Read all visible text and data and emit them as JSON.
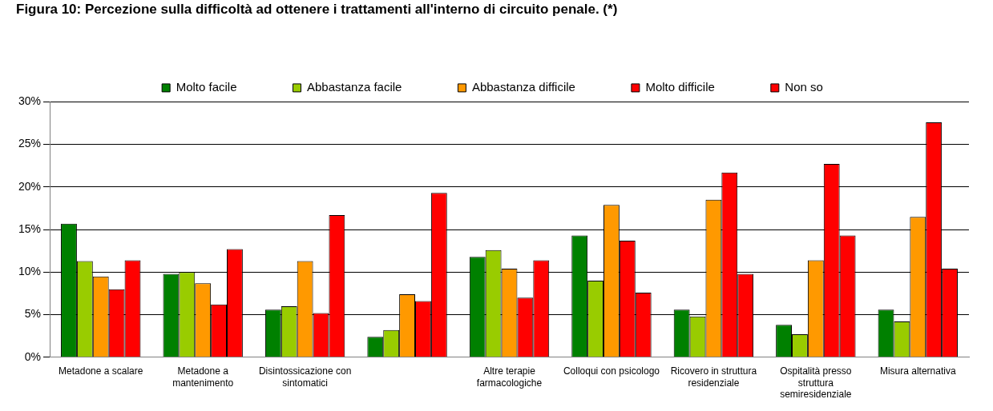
{
  "chart_data": {
    "type": "bar",
    "title": "Figura 10: Percezione sulla difficoltà ad ottenere i trattamenti all'interno di circuito penale. (*)",
    "categories": [
      "Metadone a scalare",
      "Metadone a mantenimento",
      "Disintossicazione con sintomatici",
      null,
      "Altre terapie farmacologiche",
      "Colloqui con psicologo",
      "Ricovero in struttura residenziale",
      "Ospitalità presso struttura semiresidenziale",
      "Misura alternativa"
    ],
    "series": [
      {
        "name": "Molto facile",
        "color": "#008000",
        "values": [
          15.7,
          9.8,
          5.6,
          2.4,
          11.8,
          14.3,
          5.6,
          3.8,
          5.6
        ]
      },
      {
        "name": "Abbastanza facile",
        "color": "#99cc00",
        "values": [
          11.3,
          10.0,
          6.0,
          3.2,
          12.6,
          9.0,
          4.8,
          2.7,
          4.2
        ]
      },
      {
        "name": "Abbastanza difficile",
        "color": "#ff9900",
        "values": [
          9.5,
          8.7,
          11.3,
          7.4,
          10.4,
          17.9,
          18.5,
          11.4,
          16.5
        ]
      },
      {
        "name": "Molto difficile",
        "color": "#ff0000",
        "values": [
          8.0,
          6.2,
          5.2,
          6.6,
          7.0,
          13.7,
          21.7,
          22.7,
          27.6
        ]
      },
      {
        "name": "Non so",
        "color": "#ff0000",
        "values": [
          11.4,
          12.7,
          16.7,
          19.3,
          11.4,
          7.6,
          9.8,
          14.3,
          10.4
        ]
      }
    ],
    "ylim": [
      0,
      30
    ],
    "yticks": [
      {
        "value": 0,
        "label": "0%"
      },
      {
        "value": 5,
        "label": "5%"
      },
      {
        "value": 10,
        "label": "10%"
      },
      {
        "value": 15,
        "label": "15%"
      },
      {
        "value": 20,
        "label": "20%"
      },
      {
        "value": 25,
        "label": "25%"
      },
      {
        "value": 30,
        "label": "30%"
      }
    ],
    "grid": "y",
    "legend": "top"
  }
}
